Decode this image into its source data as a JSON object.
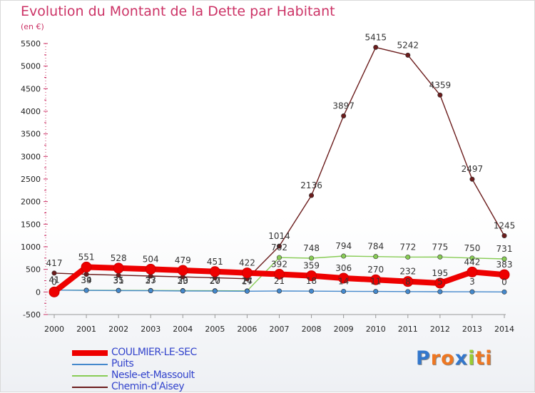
{
  "chart_data": {
    "type": "line",
    "title": "Evolution du Montant de la Dette par Habitant",
    "unit_label": "(en €)",
    "x": [
      "2000",
      "2001",
      "2002",
      "2003",
      "2004",
      "2005",
      "2006",
      "2007",
      "2008",
      "2009",
      "2010",
      "2011",
      "2012",
      "2013",
      "2014"
    ],
    "ylim": [
      -500,
      5500
    ],
    "yticks": [
      -500,
      0,
      500,
      1000,
      1500,
      2000,
      2500,
      3000,
      3500,
      4000,
      4500,
      5000,
      5500
    ],
    "grid": false,
    "legend": "bottom-left",
    "series": [
      {
        "name": "Chemin-d'Aisey",
        "color": "#6b1c1c",
        "values": [
          417,
          391,
          371,
          352,
          334,
          314,
          292,
          1014,
          2136,
          3897,
          5415,
          5242,
          4359,
          2497,
          1245
        ],
        "labels": [
          "417",
          "",
          "",
          "",
          "",
          "",
          "",
          "1014",
          "2136",
          "3897",
          "5415",
          "5242",
          "4359",
          "2497",
          "1245"
        ]
      },
      {
        "name": "Nesle-et-Massoult",
        "color": "#88cc55",
        "values": [
          41,
          39,
          35,
          33,
          30,
          27,
          24,
          762,
          748,
          794,
          784,
          772,
          775,
          750,
          731
        ],
        "labels": [
          "41",
          "39",
          "35",
          "33",
          "30",
          "27",
          "24",
          "762",
          "748",
          "794",
          "784",
          "772",
          "775",
          "750",
          "731"
        ]
      },
      {
        "name": "Puits",
        "color": "#4488cc",
        "values": [
          41,
          34,
          31,
          27,
          23,
          20,
          17,
          21,
          18,
          14,
          11,
          8,
          5,
          3,
          0
        ],
        "labels": [
          "41",
          "34",
          "31",
          "27",
          "23",
          "20",
          "17",
          "21",
          "18",
          "14",
          "11",
          "8",
          "5",
          "3",
          "0"
        ]
      },
      {
        "name": "COULMIER-LE-SEC",
        "color": "#ee0000",
        "values": [
          0,
          551,
          528,
          504,
          479,
          451,
          422,
          392,
          359,
          306,
          270,
          232,
          195,
          442,
          383
        ],
        "labels": [
          "0",
          "551",
          "528",
          "504",
          "479",
          "451",
          "422",
          "392",
          "359",
          "306",
          "270",
          "232",
          "195",
          "442",
          "383"
        ]
      }
    ]
  },
  "legend_items": [
    {
      "name": "COULMIER-LE-SEC",
      "color": "#ee0000",
      "thickness": 8
    },
    {
      "name": "Puits",
      "color": "#4488cc",
      "thickness": 2
    },
    {
      "name": "Nesle-et-Massoult",
      "color": "#88cc55",
      "thickness": 2
    },
    {
      "name": "Chemin-d'Aisey",
      "color": "#6b1c1c",
      "thickness": 2
    }
  ],
  "brand": {
    "text": "Proxiti",
    "letter_colors": [
      "#3377cc",
      "#ee7722",
      "#ee7722",
      "#3377cc",
      "#99cc33",
      "#ee7722",
      "#ee7722"
    ]
  }
}
